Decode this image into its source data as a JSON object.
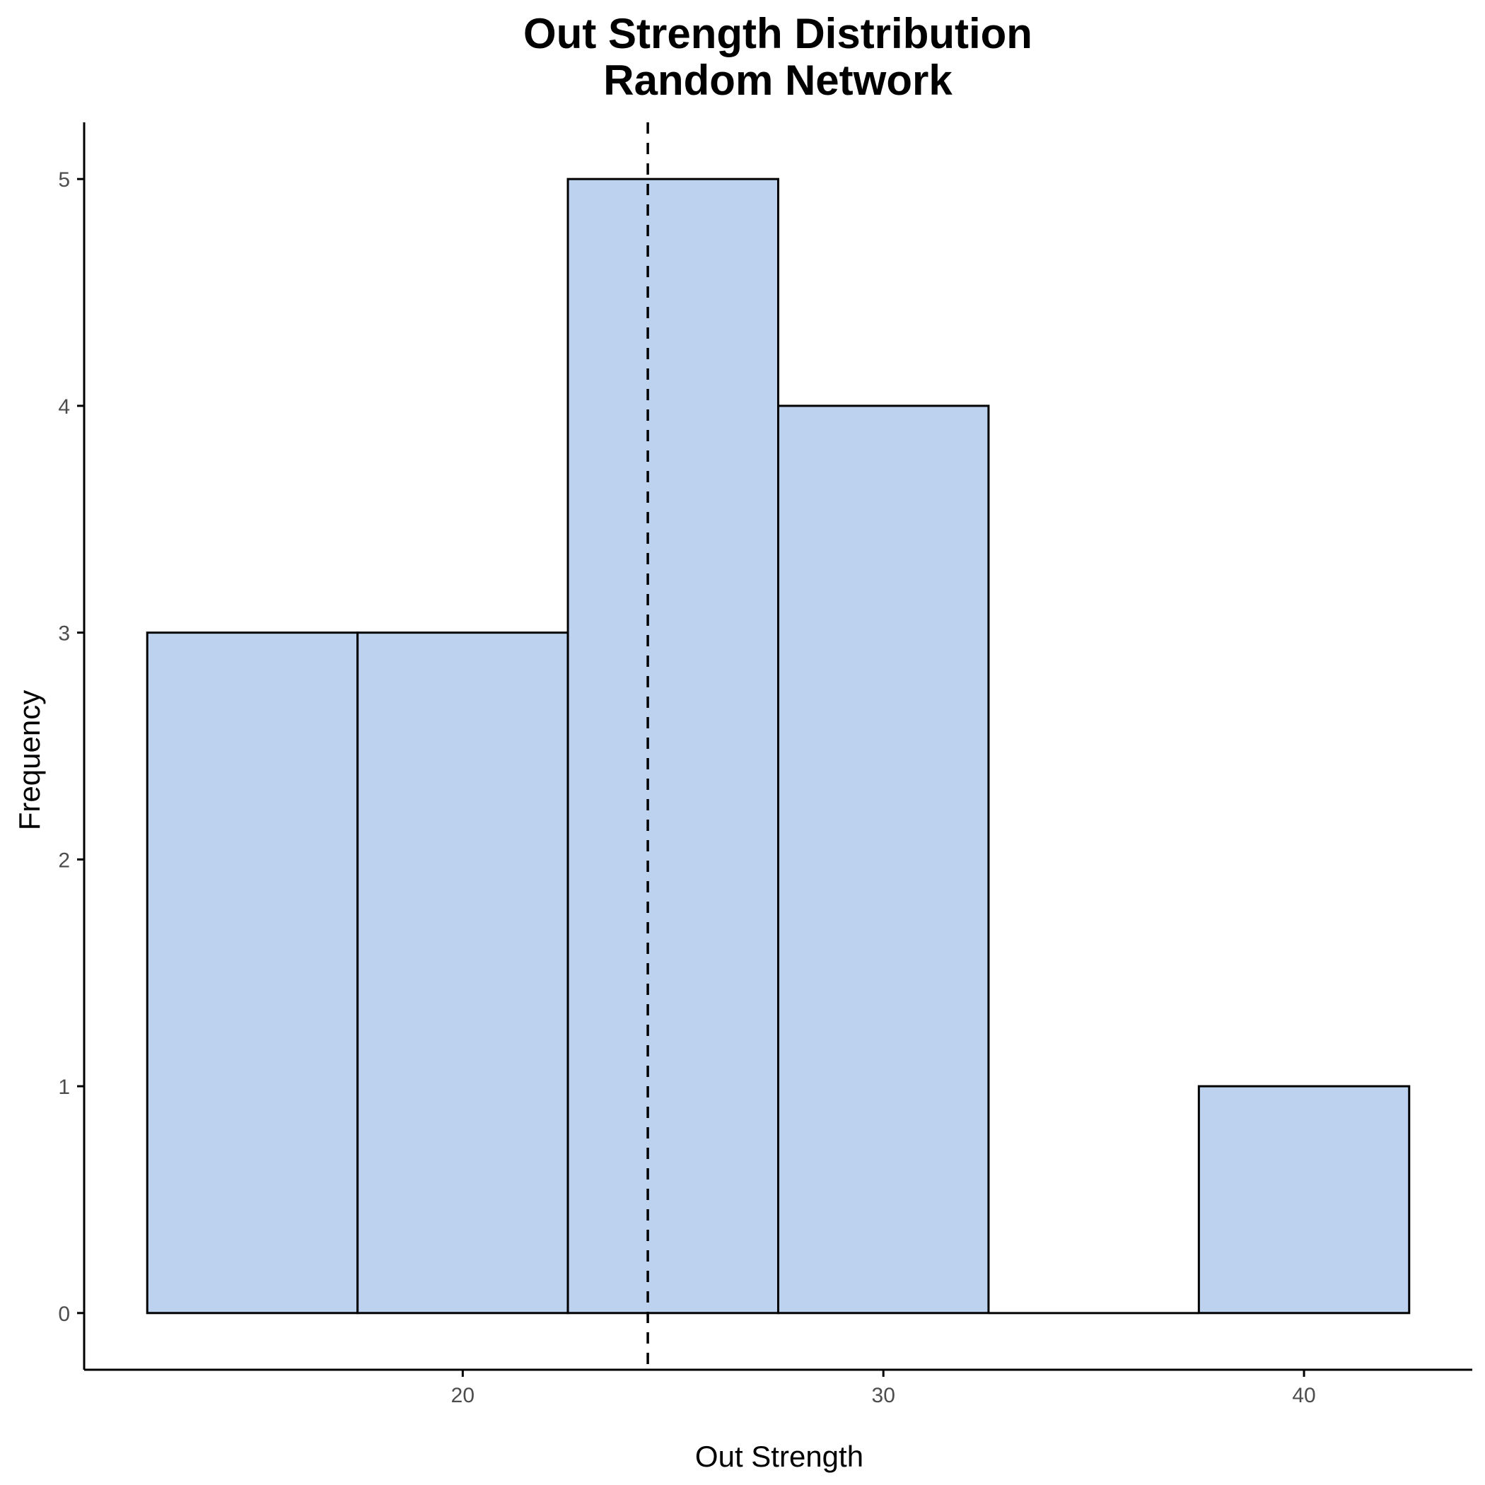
{
  "chart_data": {
    "type": "bar",
    "title": "Out Strength Distribution",
    "subtitle": "Random Network",
    "xlabel": "Out Strength",
    "ylabel": "Frequency",
    "bins": [
      {
        "x0": 12.5,
        "x1": 17.5,
        "count": 3
      },
      {
        "x0": 17.5,
        "x1": 22.5,
        "count": 3
      },
      {
        "x0": 22.5,
        "x1": 27.5,
        "count": 5
      },
      {
        "x0": 27.5,
        "x1": 32.5,
        "count": 4
      },
      {
        "x0": 32.5,
        "x1": 37.5,
        "count": 0
      },
      {
        "x0": 37.5,
        "x1": 42.5,
        "count": 1
      }
    ],
    "xlim": [
      11.0,
      44.0
    ],
    "ylim": [
      -0.25,
      5.25
    ],
    "xticks": [
      20,
      30,
      40
    ],
    "yticks": [
      0,
      1,
      2,
      3,
      4,
      5
    ],
    "reference_line": {
      "x": 24.4,
      "style": "dashed"
    },
    "bar_fill": "#bdd2ee",
    "bar_stroke": "#000000",
    "grid": false
  }
}
